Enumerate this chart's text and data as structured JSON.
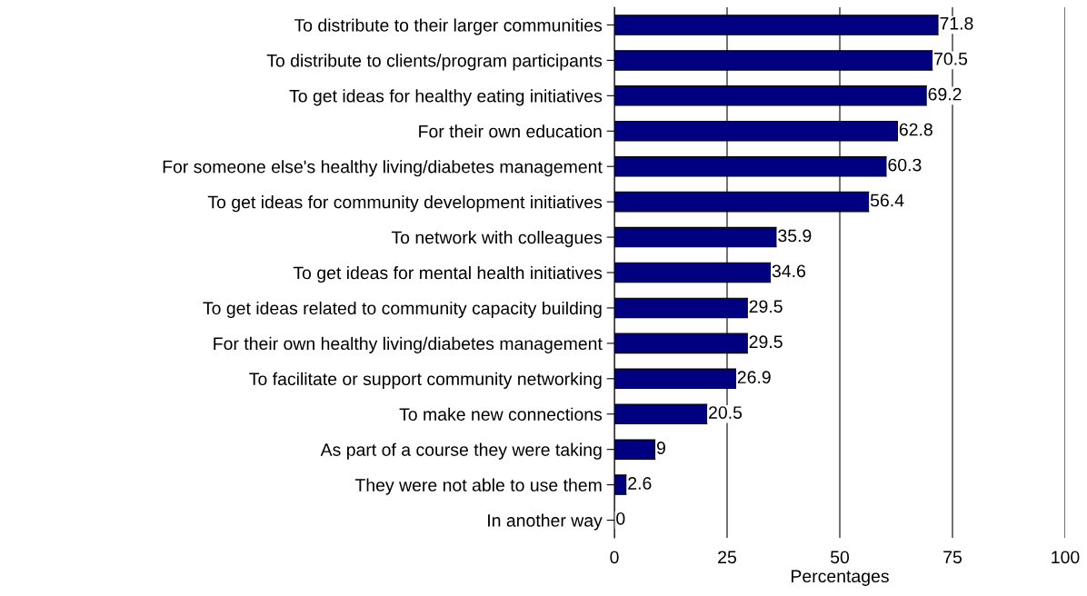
{
  "chart_data": {
    "type": "bar",
    "orientation": "horizontal",
    "xlabel": "Percentages",
    "categories": [
      "To distribute to their larger communities",
      "To distribute to clients/program participants",
      "To get ideas for healthy eating initiatives",
      "For their own education",
      "For someone else's healthy living/diabetes management",
      "To get ideas for community development initiatives",
      "To network with colleagues",
      "To get ideas for mental health initiatives",
      "To get ideas related to community capacity building",
      "For their own healthy living/diabetes management",
      "To facilitate or support community networking",
      "To make new connections",
      "As part of a course they were taking",
      "They were not able to use them",
      "In another way"
    ],
    "values": [
      71.8,
      70.5,
      69.2,
      62.8,
      60.3,
      56.4,
      35.9,
      34.6,
      29.5,
      29.5,
      26.9,
      20.5,
      9,
      2.6,
      0
    ],
    "color": "#000080",
    "data_labels": true,
    "xlim": [
      0,
      100
    ],
    "xticks": [
      0,
      25,
      50,
      75,
      100
    ],
    "grid": "x"
  }
}
